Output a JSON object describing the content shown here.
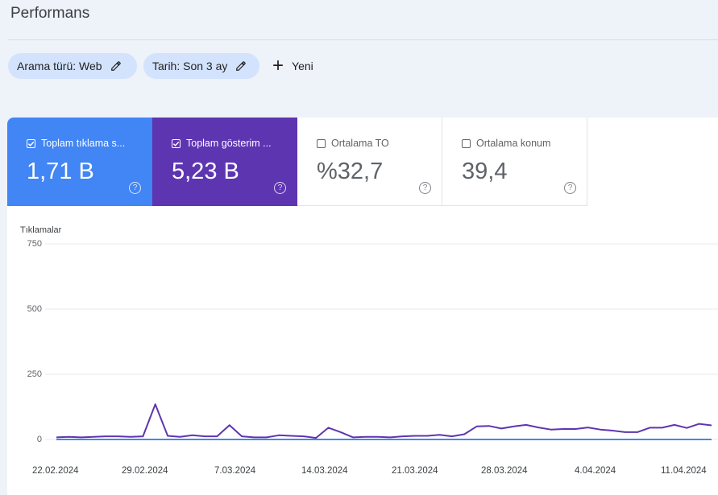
{
  "header": {
    "title": "Performans"
  },
  "filters": {
    "chips": [
      {
        "label": "Arama türü: Web",
        "icon": "pencil-icon"
      },
      {
        "label": "Tarih: Son 3 ay",
        "icon": "pencil-icon"
      }
    ],
    "new_label": "Yeni"
  },
  "metrics": [
    {
      "label": "Toplam tıklama s...",
      "value": "1,71 B",
      "checked": true,
      "color": "#4285f4"
    },
    {
      "label": "Toplam gösterim ...",
      "value": "5,23 B",
      "checked": true,
      "color": "#5e35b1"
    },
    {
      "label": "Ortalama TO",
      "value": "%32,7",
      "checked": false
    },
    {
      "label": "Ortalama konum",
      "value": "39,4",
      "checked": false
    }
  ],
  "chart_data": {
    "type": "line",
    "ylabel": "Tıklamalar",
    "yticks": [
      0,
      250,
      500,
      750
    ],
    "ylim": [
      0,
      750
    ],
    "xtick_labels": [
      "22.02.2024",
      "29.02.2024",
      "7.03.2024",
      "14.03.2024",
      "21.03.2024",
      "28.03.2024",
      "4.04.2024",
      "11.04.2024"
    ],
    "x": [
      "22.02.2024",
      "23.02.2024",
      "24.02.2024",
      "25.02.2024",
      "26.02.2024",
      "27.02.2024",
      "28.02.2024",
      "29.02.2024",
      "1.03.2024",
      "2.03.2024",
      "3.03.2024",
      "4.03.2024",
      "5.03.2024",
      "6.03.2024",
      "7.03.2024",
      "8.03.2024",
      "9.03.2024",
      "10.03.2024",
      "11.03.2024",
      "12.03.2024",
      "13.03.2024",
      "14.03.2024",
      "15.03.2024",
      "16.03.2024",
      "17.03.2024",
      "18.03.2024",
      "19.03.2024",
      "20.03.2024",
      "21.03.2024",
      "22.03.2024",
      "23.03.2024",
      "24.03.2024",
      "25.03.2024",
      "26.03.2024",
      "27.03.2024",
      "28.03.2024",
      "29.03.2024",
      "30.03.2024",
      "31.03.2024",
      "1.04.2024",
      "2.04.2024",
      "3.04.2024",
      "4.04.2024",
      "5.04.2024",
      "6.04.2024",
      "7.04.2024",
      "8.04.2024",
      "9.04.2024",
      "10.04.2024",
      "11.04.2024",
      "12.04.2024",
      "13.04.2024",
      "14.04.2024",
      "15.04.2024"
    ],
    "series": [
      {
        "color": "#5e35b1",
        "values": [
          8,
          10,
          8,
          10,
          12,
          12,
          10,
          12,
          135,
          14,
          10,
          16,
          12,
          12,
          55,
          12,
          8,
          8,
          16,
          14,
          12,
          6,
          45,
          28,
          8,
          10,
          10,
          8,
          12,
          14,
          14,
          18,
          12,
          20,
          50,
          52,
          42,
          50,
          56,
          46,
          38,
          40,
          40,
          46,
          38,
          34,
          28,
          28,
          45,
          45,
          56,
          44,
          60,
          54
        ]
      },
      {
        "color": "#4285f4",
        "values": [
          0,
          0,
          0,
          0,
          0,
          0,
          0,
          0,
          0,
          0,
          0,
          0,
          0,
          0,
          0,
          0,
          0,
          0,
          0,
          0,
          0,
          0,
          0,
          0,
          0,
          0,
          0,
          0,
          0,
          0,
          0,
          0,
          0,
          0,
          0,
          0,
          0,
          0,
          0,
          0,
          0,
          0,
          0,
          0,
          0,
          0,
          0,
          0,
          0,
          0,
          0,
          0,
          0,
          0
        ]
      }
    ],
    "grid": true
  }
}
